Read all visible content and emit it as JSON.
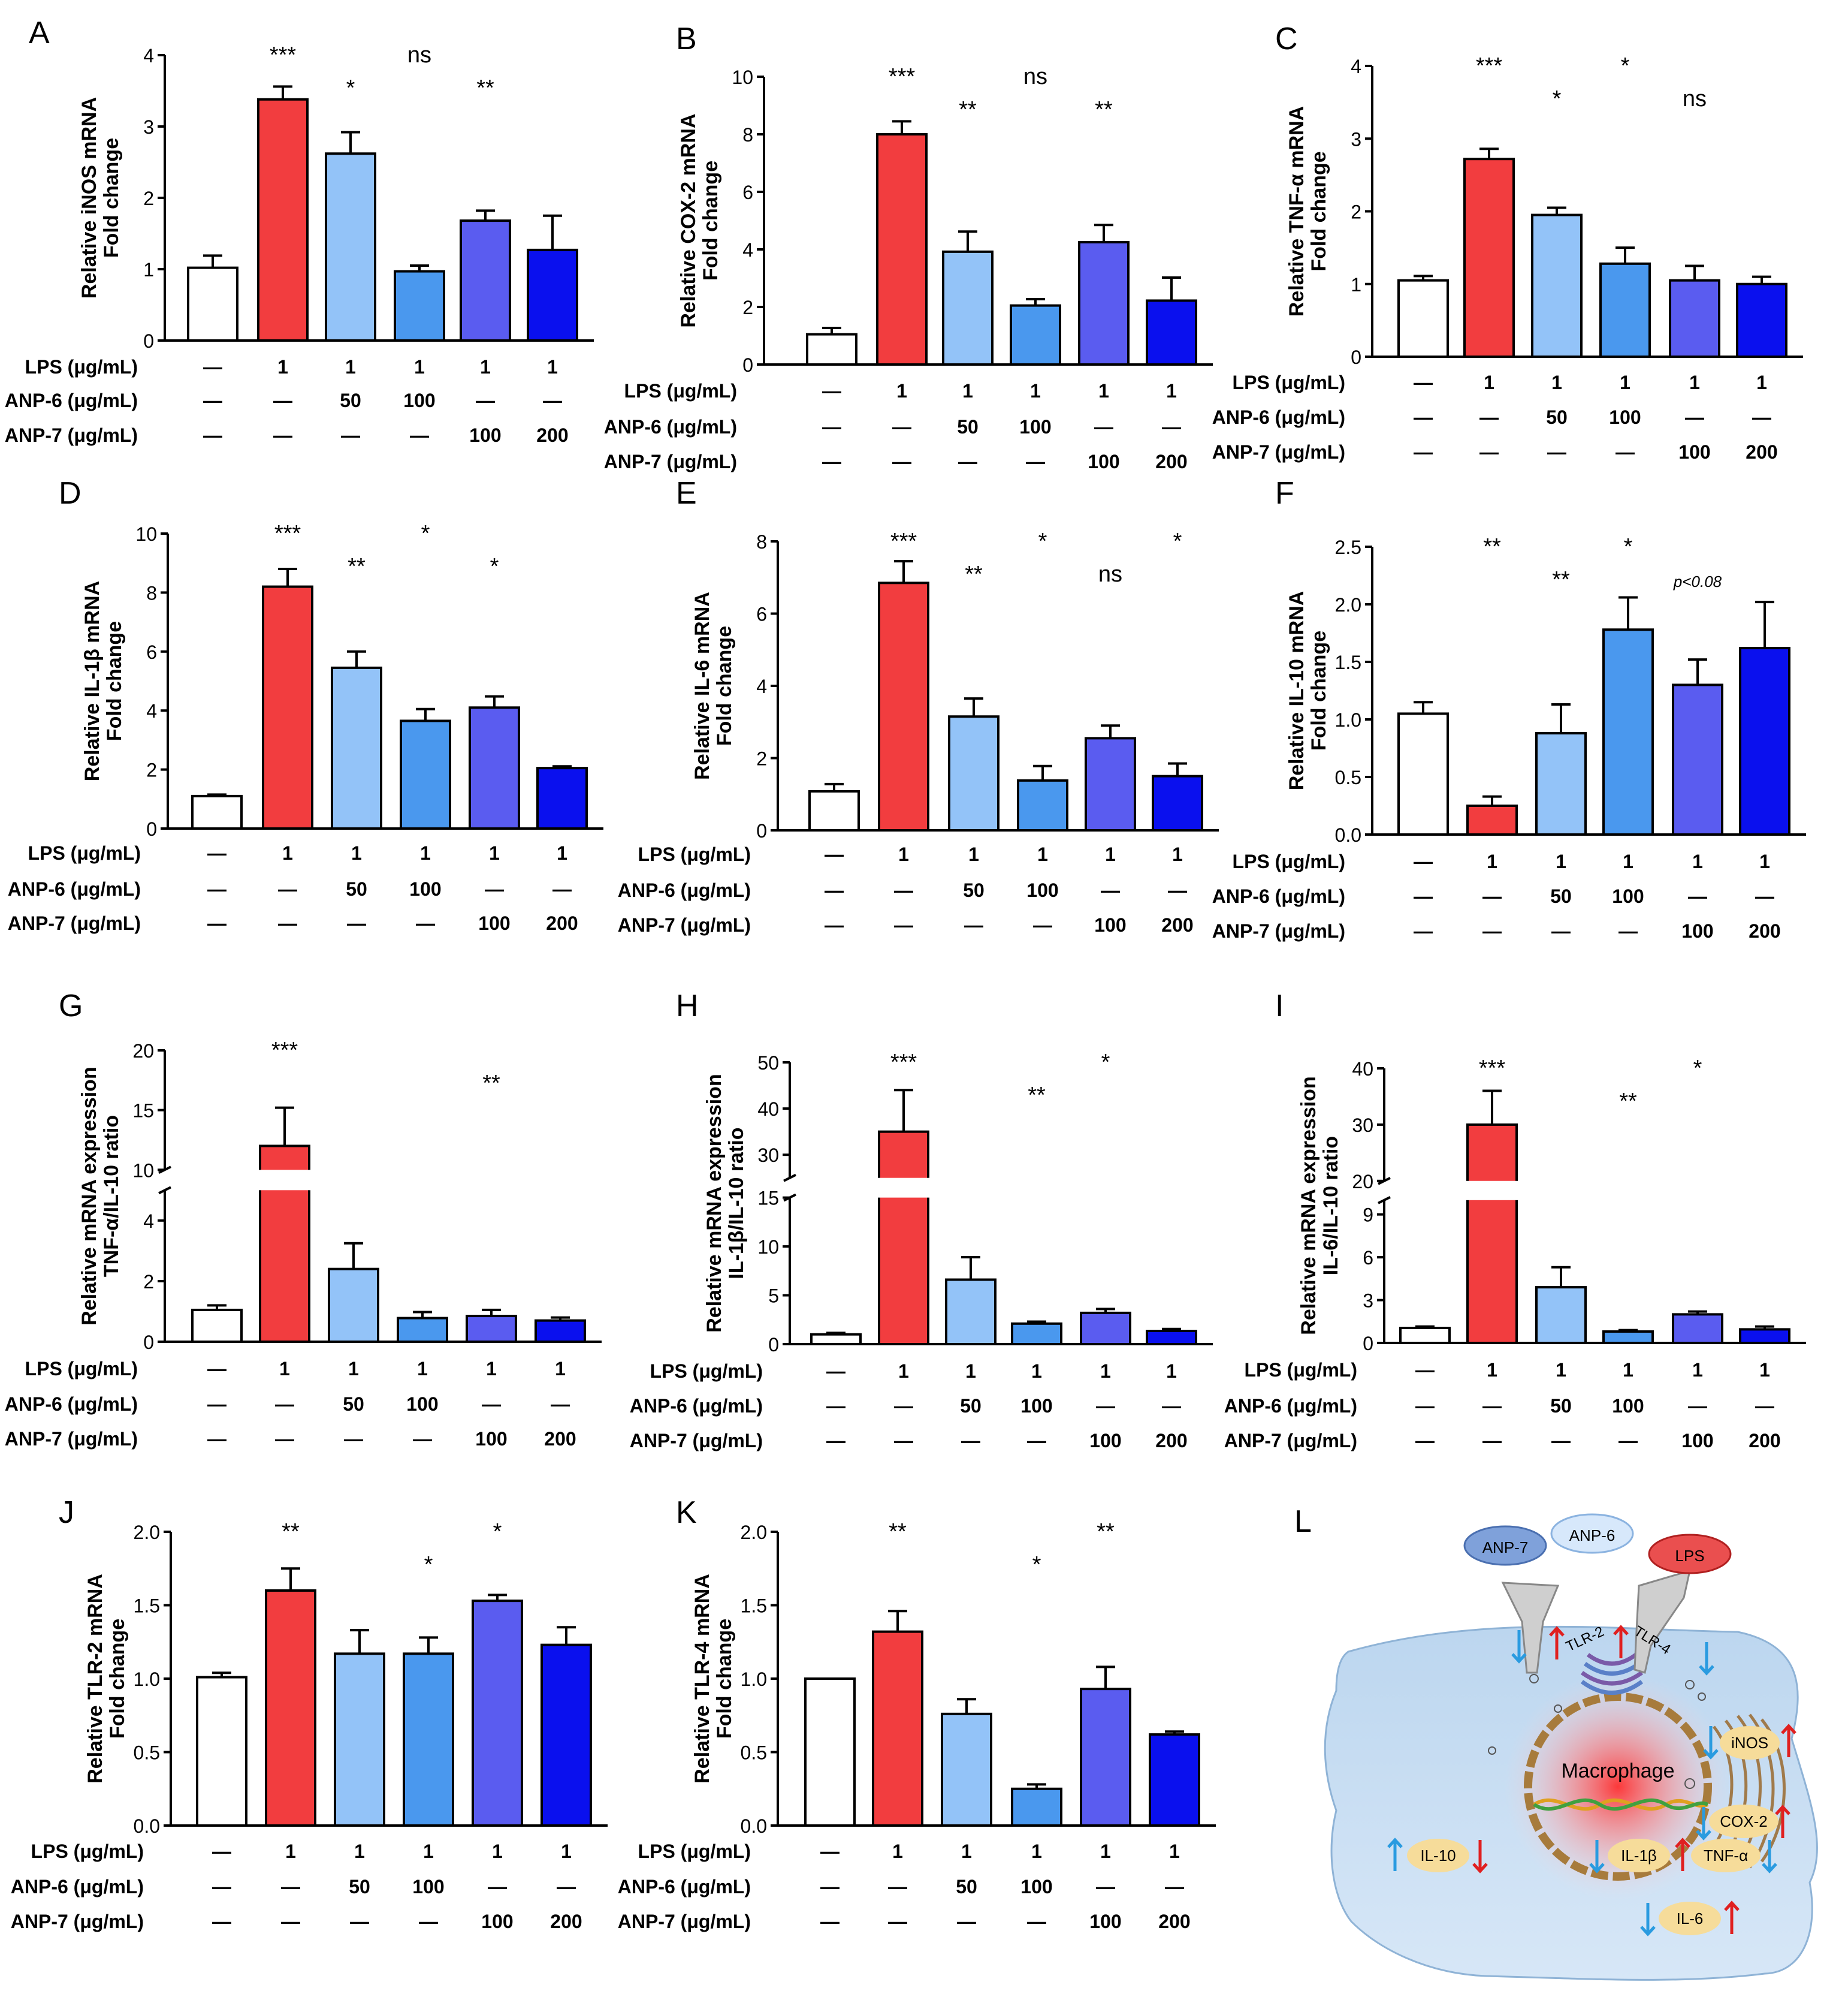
{
  "colors": {
    "groups": [
      "#ffffff",
      "#f23d3f",
      "#93c3f8",
      "#4a98ee",
      "#5a5cf0",
      "#0a10ee"
    ],
    "axis": "#000000"
  },
  "row_labels": [
    "LPS (μg/mL)",
    "ANP-6 (μg/mL)",
    "ANP-7 (μg/mL)"
  ],
  "row_values": [
    [
      "—",
      "1",
      "1",
      "1",
      "1",
      "1"
    ],
    [
      "—",
      "—",
      "50",
      "100",
      "—",
      "—"
    ],
    [
      "—",
      "—",
      "—",
      "—",
      "100",
      "200"
    ]
  ],
  "chart_data": [
    {
      "panel": "A",
      "type": "bar",
      "ylabel": [
        "Relative iNOS mRNA",
        "Fold change"
      ],
      "ylim": [
        0,
        4
      ],
      "yticks": [
        0,
        1,
        2,
        3,
        4
      ],
      "ytick_labels": [
        "0",
        "1",
        "2",
        "3",
        "4"
      ],
      "values": [
        1.02,
        3.38,
        2.62,
        0.97,
        1.68,
        1.27
      ],
      "errors": [
        0.17,
        0.18,
        0.3,
        0.08,
        0.14,
        0.48
      ],
      "significance": [
        "***",
        "*",
        "ns",
        "**"
      ]
    },
    {
      "panel": "B",
      "type": "bar",
      "ylabel": [
        "Relative COX-2 mRNA",
        "Fold change"
      ],
      "ylim": [
        0,
        10
      ],
      "yticks": [
        0,
        2,
        4,
        6,
        8,
        10
      ],
      "ytick_labels": [
        "0",
        "2",
        "4",
        "6",
        "8",
        "10"
      ],
      "values": [
        1.05,
        8.0,
        3.92,
        2.05,
        4.25,
        2.22
      ],
      "errors": [
        0.22,
        0.45,
        0.7,
        0.22,
        0.6,
        0.8
      ],
      "significance": [
        "***",
        "**",
        "ns",
        "**"
      ]
    },
    {
      "panel": "C",
      "type": "bar",
      "ylabel": [
        "Relative TNF-α mRNA",
        "Fold change"
      ],
      "ylim": [
        0,
        4
      ],
      "yticks": [
        0,
        1,
        2,
        3,
        4
      ],
      "ytick_labels": [
        "0",
        "1",
        "2",
        "3",
        "4"
      ],
      "values": [
        1.05,
        2.72,
        1.95,
        1.28,
        1.05,
        1.0
      ],
      "errors": [
        0.06,
        0.14,
        0.1,
        0.22,
        0.2,
        0.1
      ],
      "significance": [
        "***",
        "*",
        "*",
        "ns"
      ]
    },
    {
      "panel": "D",
      "type": "bar",
      "ylabel": [
        "Relative IL-1β mRNA",
        "Fold change"
      ],
      "ylim": [
        0,
        10
      ],
      "yticks": [
        0,
        2,
        4,
        6,
        8,
        10
      ],
      "ytick_labels": [
        "0",
        "2",
        "4",
        "6",
        "8",
        "10"
      ],
      "values": [
        1.1,
        8.2,
        5.45,
        3.65,
        4.1,
        2.05
      ],
      "errors": [
        0.05,
        0.6,
        0.55,
        0.4,
        0.38,
        0.06
      ],
      "significance": [
        "***",
        "**",
        "*",
        "*"
      ]
    },
    {
      "panel": "E",
      "type": "bar",
      "ylabel": [
        "Relative IL-6 mRNA",
        "Fold change"
      ],
      "ylim": [
        0,
        8
      ],
      "yticks": [
        0,
        2,
        4,
        6,
        8
      ],
      "ytick_labels": [
        "0",
        "2",
        "4",
        "6",
        "8"
      ],
      "values": [
        1.08,
        6.85,
        3.15,
        1.38,
        2.55,
        1.5
      ],
      "errors": [
        0.2,
        0.6,
        0.5,
        0.4,
        0.35,
        0.35
      ],
      "significance": [
        "***",
        "**",
        "*",
        "ns",
        "*"
      ]
    },
    {
      "panel": "F",
      "type": "bar",
      "ylabel": [
        "Relative IL-10 mRNA",
        "Fold change"
      ],
      "ylim": [
        0,
        2.5
      ],
      "yticks": [
        0,
        0.5,
        1,
        1.5,
        2,
        2.5
      ],
      "ytick_labels": [
        "0.0",
        "0.5",
        "1.0",
        "1.5",
        "2.0",
        "2.5"
      ],
      "values": [
        1.05,
        0.25,
        0.88,
        1.78,
        1.3,
        1.62
      ],
      "errors": [
        0.1,
        0.08,
        0.25,
        0.28,
        0.22,
        0.4
      ],
      "significance": [
        "**",
        "**",
        "*",
        "p<0.08"
      ]
    },
    {
      "panel": "G",
      "type": "bar",
      "ylabel": [
        "Relative  mRNA expression",
        "TNF-α/IL-10 ratio"
      ],
      "ylim": [
        0,
        20
      ],
      "yticks": [
        0,
        2,
        4,
        10,
        15,
        20
      ],
      "ytick_labels": [
        "0",
        "2",
        "4",
        "10",
        "15",
        "20"
      ],
      "axis_break": [
        5,
        10
      ],
      "values": [
        1.05,
        12.0,
        2.4,
        0.78,
        0.85,
        0.7
      ],
      "errors": [
        0.15,
        3.2,
        0.85,
        0.2,
        0.2,
        0.1
      ],
      "significance": [
        "***",
        "**"
      ]
    },
    {
      "panel": "H",
      "type": "bar",
      "ylabel": [
        "Relative  mRNA expression",
        "IL-1β/IL-10 ratio"
      ],
      "ylim": [
        0,
        50
      ],
      "yticks": [
        0,
        5,
        10,
        15,
        30,
        40,
        50
      ],
      "ytick_labels": [
        "0",
        "5",
        "10",
        "15",
        "30",
        "40",
        "50"
      ],
      "axis_break": [
        15,
        25
      ],
      "values": [
        1.0,
        35.0,
        6.6,
        2.1,
        3.2,
        1.35
      ],
      "errors": [
        0.15,
        9.0,
        2.3,
        0.2,
        0.4,
        0.2
      ],
      "significance": [
        "***",
        "**",
        "*"
      ]
    },
    {
      "panel": "I",
      "type": "bar",
      "ylabel": [
        "Relative  mRNA expression",
        "IL-6/IL-10 ratio"
      ],
      "ylim": [
        0,
        40
      ],
      "yticks": [
        0,
        3,
        6,
        9,
        20,
        30,
        40
      ],
      "ytick_labels": [
        "0",
        "3",
        "6",
        "9",
        "20",
        "30",
        "40"
      ],
      "axis_break": [
        10,
        20
      ],
      "values": [
        1.05,
        30.0,
        3.9,
        0.8,
        2.0,
        0.95
      ],
      "errors": [
        0.1,
        6.0,
        1.4,
        0.1,
        0.2,
        0.2
      ],
      "significance": [
        "***",
        "**",
        "*"
      ]
    },
    {
      "panel": "J",
      "type": "bar",
      "ylabel": [
        "Relative TLR-2 mRNA",
        "Fold change"
      ],
      "ylim": [
        0,
        2
      ],
      "yticks": [
        0,
        0.5,
        1,
        1.5,
        2
      ],
      "ytick_labels": [
        "0.0",
        "0.5",
        "1.0",
        "1.5",
        "2.0"
      ],
      "values": [
        1.01,
        1.6,
        1.17,
        1.17,
        1.53,
        1.23
      ],
      "errors": [
        0.03,
        0.15,
        0.16,
        0.11,
        0.04,
        0.12
      ],
      "significance": [
        "**",
        "*",
        "*"
      ]
    },
    {
      "panel": "K",
      "type": "bar",
      "ylabel": [
        "Relative TLR-4 mRNA",
        "Fold change"
      ],
      "ylim": [
        0,
        2
      ],
      "yticks": [
        0,
        0.5,
        1,
        1.5,
        2
      ],
      "ytick_labels": [
        "0.0",
        "0.5",
        "1.0",
        "1.5",
        "2.0"
      ],
      "values": [
        1.0,
        1.32,
        0.76,
        0.25,
        0.93,
        0.62
      ],
      "errors": [
        0.0,
        0.14,
        0.1,
        0.03,
        0.15,
        0.02
      ],
      "significance": [
        "**",
        "*",
        "**"
      ]
    }
  ],
  "diagram_L": {
    "panel": "L",
    "ligands": [
      "ANP-7",
      "ANP-6",
      "LPS"
    ],
    "receptors": [
      "TLR-2",
      "TLR-4"
    ],
    "cell_label": "Macrophage",
    "markers": [
      "iNOS",
      "COX-2",
      "IL-10",
      "IL-1β",
      "TNF-α",
      "IL-6"
    ]
  }
}
